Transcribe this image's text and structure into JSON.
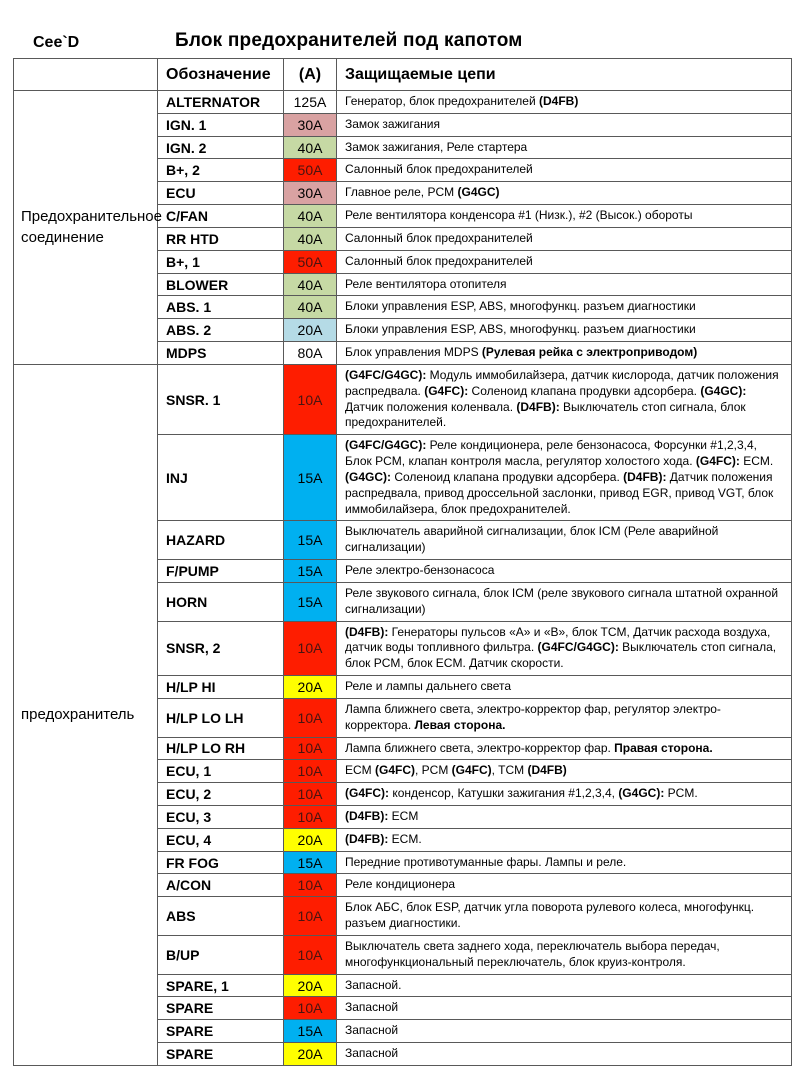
{
  "page": {
    "model": "Cee`D",
    "title": "Блок предохранителей под капотом"
  },
  "table": {
    "headers": {
      "group": "",
      "designation": "Обозначение",
      "amp": "(A)",
      "circuits": "Защищаемые цепи"
    },
    "amp_colors": {
      "white": "#ffffff",
      "pink": "#d9a2a2",
      "green": "#c6d9a4",
      "red": "#fe1d00",
      "lightblue": "#b5dbe6",
      "blue": "#00b0f0",
      "yellow": "#ffff00"
    },
    "groups": [
      {
        "label": "Предохранительное соединение",
        "rows": [
          {
            "designation": "ALTERNATOR",
            "amp": "125A",
            "amp_color": "white",
            "circuits": [
              [
                "Генератор, блок предохранителей ",
                0
              ],
              [
                "(D4FB)",
                1
              ]
            ]
          },
          {
            "designation": "IGN. 1",
            "amp": "30A",
            "amp_color": "pink",
            "circuits": [
              [
                "Замок зажигания",
                0
              ]
            ]
          },
          {
            "designation": "IGN. 2",
            "amp": "40A",
            "amp_color": "green",
            "circuits": [
              [
                "Замок зажигания, Реле стартера",
                0
              ]
            ]
          },
          {
            "designation": "B+, 2",
            "amp": "50A",
            "amp_color": "red",
            "circuits": [
              [
                "Салонный блок предохранителей",
                0
              ]
            ]
          },
          {
            "designation": "ECU",
            "amp": "30A",
            "amp_color": "pink",
            "circuits": [
              [
                "Главное реле, PCM ",
                0
              ],
              [
                "(G4GC)",
                1
              ]
            ]
          },
          {
            "designation": "C/FAN",
            "amp": "40A",
            "amp_color": "green",
            "circuits": [
              [
                "Реле вентилятора конденсора #1 (Низк.), #2 (Высок.) обороты",
                0
              ]
            ]
          },
          {
            "designation": "RR HTD",
            "amp": "40A",
            "amp_color": "green",
            "circuits": [
              [
                "Салонный блок предохранителей",
                0
              ]
            ]
          },
          {
            "designation": "B+, 1",
            "amp": "50A",
            "amp_color": "red",
            "circuits": [
              [
                "Салонный блок предохранителей",
                0
              ]
            ]
          },
          {
            "designation": "BLOWER",
            "amp": "40A",
            "amp_color": "green",
            "circuits": [
              [
                "Реле вентилятора отопителя",
                0
              ]
            ]
          },
          {
            "designation": "ABS. 1",
            "amp": "40A",
            "amp_color": "green",
            "circuits": [
              [
                "Блоки управления ESP, ABS, многофункц. разъем диагностики",
                0
              ]
            ]
          },
          {
            "designation": "ABS. 2",
            "amp": "20A",
            "amp_color": "lightblue",
            "circuits": [
              [
                "Блоки управления ESP, ABS, многофункц. разъем диагностики",
                0
              ]
            ]
          },
          {
            "designation": "MDPS",
            "amp": "80A",
            "amp_color": "white",
            "circuits": [
              [
                "Блок управления MDPS ",
                0
              ],
              [
                "(Рулевая рейка с электроприводом)",
                1
              ]
            ]
          }
        ]
      },
      {
        "label": "предохранитель",
        "rows": [
          {
            "designation": "SNSR. 1",
            "amp": "10A",
            "amp_color": "red",
            "circuits": [
              [
                "(G4FC/G4GC):",
                1
              ],
              [
                " Модуль иммобилайзера, датчик кислорода, датчик положения распредвала. ",
                0
              ],
              [
                "(G4FC):",
                1
              ],
              [
                " Соленоид клапана продувки адсорбера. ",
                0
              ],
              [
                "(G4GC):",
                1
              ],
              [
                " Датчик положения коленвала. ",
                0
              ],
              [
                "(D4FB):",
                1
              ],
              [
                " Выключатель стоп сигнала, блок предохранителей.",
                0
              ]
            ]
          },
          {
            "designation": "INJ",
            "amp": "15A",
            "amp_color": "blue",
            "circuits": [
              [
                "(G4FC/G4GC):",
                1
              ],
              [
                " Реле кондиционера, реле бензонасоса, Форсунки #1,2,3,4, Блок PCM, клапан контроля масла, регулятор холостого хода. ",
                0
              ],
              [
                "(G4FC):",
                1
              ],
              [
                " ECM. ",
                0
              ],
              [
                "(G4GC):",
                1
              ],
              [
                " Соленоид клапана продувки адсорбера. ",
                0
              ],
              [
                "(D4FB):",
                1
              ],
              [
                " Датчик положения распредвала, привод дроссельной заслонки, привод EGR, привод VGT, блок иммобилайзера, блок предохранителей.",
                0
              ]
            ]
          },
          {
            "designation": "HAZARD",
            "amp": "15A",
            "amp_color": "blue",
            "circuits": [
              [
                "Выключатель аварийной сигнализации, блок ICM (Реле аварийной сигнализации)",
                0
              ]
            ]
          },
          {
            "designation": "F/PUMP",
            "amp": "15A",
            "amp_color": "blue",
            "circuits": [
              [
                "Реле электро-бензонасоса",
                0
              ]
            ]
          },
          {
            "designation": "HORN",
            "amp": "15A",
            "amp_color": "blue",
            "circuits": [
              [
                "Реле звукового сигнала, блок ICM (реле звукового сигнала штатной охранной сигнализации)",
                0
              ]
            ]
          },
          {
            "designation": "SNSR, 2",
            "amp": "10A",
            "amp_color": "red",
            "circuits": [
              [
                "(D4FB):",
                1
              ],
              [
                " Генераторы пульсов «А» и «В», блок TCM, Датчик расхода воздуха, датчик воды топливного фильтра. ",
                0
              ],
              [
                "(G4FC/G4GC):",
                1
              ],
              [
                " Выключатель стоп сигнала, блок PCM, блок ECM.  Датчик скорости.",
                0
              ]
            ]
          },
          {
            "designation": "H/LP HI",
            "amp": "20A",
            "amp_color": "yellow",
            "circuits": [
              [
                "Реле и лампы дальнего света",
                0
              ]
            ]
          },
          {
            "designation": "H/LP LO LH",
            "amp": "10A",
            "amp_color": "red",
            "circuits": [
              [
                "Лампа ближнего света, электро-корректор фар, регулятор электро-корректора. ",
                0
              ],
              [
                "Левая сторона.",
                1
              ]
            ]
          },
          {
            "designation": "H/LP LO RH",
            "amp": "10A",
            "amp_color": "red",
            "circuits": [
              [
                "Лампа ближнего света, электро-корректор фар. ",
                0
              ],
              [
                "Правая сторона.",
                1
              ]
            ]
          },
          {
            "designation": "ECU, 1",
            "amp": "10A",
            "amp_color": "red",
            "circuits": [
              [
                "ECM ",
                0
              ],
              [
                "(G4FC)",
                1
              ],
              [
                ", PCM ",
                0
              ],
              [
                "(G4FC)",
                1
              ],
              [
                ", TCM ",
                0
              ],
              [
                "(D4FB)",
                1
              ]
            ]
          },
          {
            "designation": "ECU, 2",
            "amp": "10A",
            "amp_color": "red",
            "circuits": [
              [
                "(G4FC):",
                1
              ],
              [
                " конденсор, Катушки зажигания #1,2,3,4, ",
                0
              ],
              [
                "(G4GC):",
                1
              ],
              [
                " PCM.",
                0
              ]
            ]
          },
          {
            "designation": "ECU, 3",
            "amp": "10A",
            "amp_color": "red",
            "circuits": [
              [
                "(D4FB):",
                1
              ],
              [
                " ECM",
                0
              ]
            ]
          },
          {
            "designation": "ECU, 4",
            "amp": "20A",
            "amp_color": "yellow",
            "circuits": [
              [
                "(D4FB):",
                1
              ],
              [
                " ECM.",
                0
              ]
            ]
          },
          {
            "designation": "FR FOG",
            "amp": "15A",
            "amp_color": "blue",
            "circuits": [
              [
                "Передние противотуманные фары. Лампы и реле.",
                0
              ]
            ]
          },
          {
            "designation": "A/CON",
            "amp": "10A",
            "amp_color": "red",
            "circuits": [
              [
                "Реле кондиционера",
                0
              ]
            ]
          },
          {
            "designation": "ABS",
            "amp": "10A",
            "amp_color": "red",
            "circuits": [
              [
                "Блок АБС, блок ESP, датчик угла поворота рулевого колеса, многофункц. разъем диагностики.",
                0
              ]
            ]
          },
          {
            "designation": "B/UP",
            "amp": "10A",
            "amp_color": "red",
            "circuits": [
              [
                "Выключатель света заднего хода, переключатель выбора передач, многофункциональный переключатель, блок  круиз-контроля.",
                0
              ]
            ]
          },
          {
            "designation": "SPARE, 1",
            "amp": "20A",
            "amp_color": "yellow",
            "circuits": [
              [
                "Запасной.",
                0
              ]
            ]
          },
          {
            "designation": "SPARE",
            "amp": "10A",
            "amp_color": "red",
            "circuits": [
              [
                "Запасной",
                0
              ]
            ]
          },
          {
            "designation": "SPARE",
            "amp": "15A",
            "amp_color": "blue",
            "circuits": [
              [
                "Запасной",
                0
              ]
            ]
          },
          {
            "designation": "SPARE",
            "amp": "20A",
            "amp_color": "yellow",
            "circuits": [
              [
                "Запасной",
                0
              ]
            ]
          }
        ]
      }
    ]
  }
}
